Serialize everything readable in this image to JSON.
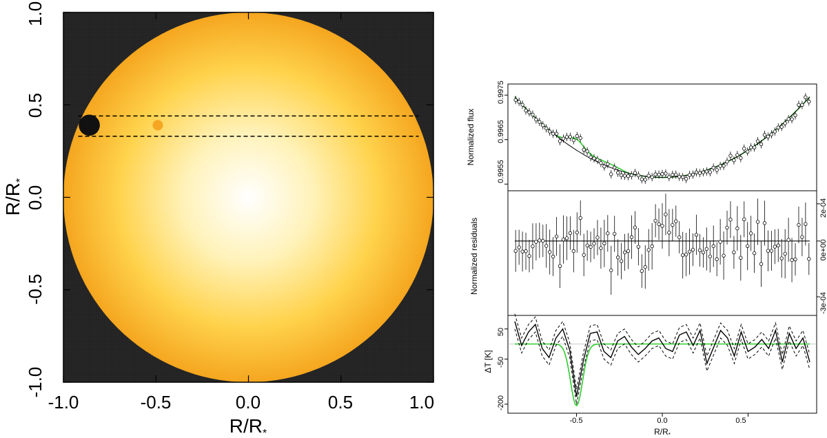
{
  "chart_data": [
    {
      "type": "heatmap",
      "name": "stellar-disk-map",
      "xlabel": "R/R",
      "ylabel": "R/R",
      "label_subscript": "*",
      "xlim": [
        -1.0,
        1.0
      ],
      "ylim": [
        -1.0,
        1.0
      ],
      "xticks": [
        "-1.0",
        "-0.5",
        "0.0",
        "0.5",
        "1.0"
      ],
      "yticks": [
        "-1.0",
        "-0.5",
        "0.0",
        "0.5",
        "1.0"
      ],
      "star_radius": 1.0,
      "transit_band": [
        0.33,
        0.44
      ],
      "planet": {
        "x": -0.86,
        "y": 0.39,
        "r": 0.057
      },
      "spot": {
        "x": -0.49,
        "y": 0.39,
        "r": 0.028
      },
      "colors": {
        "background": "#222222",
        "limb": "#f5a51c",
        "center": "#ffffff",
        "planet": "#111111",
        "spot": "#f5a623",
        "dashed": "#000000"
      }
    },
    {
      "type": "scatter",
      "name": "normalized-flux",
      "ylabel": "Normalized flux",
      "yticks": [
        "0.9955",
        "0.9965",
        "0.9975"
      ],
      "ylim": [
        0.99535,
        0.99775
      ],
      "xlim": [
        -0.9,
        0.9
      ],
      "model": {
        "a": 0.99565,
        "b": 0.00245
      },
      "bump": {
        "center": -0.5,
        "width": 0.05,
        "amp": 0.00025
      },
      "colors": {
        "model": "#000000",
        "fit": "#2ecc2e"
      }
    },
    {
      "type": "scatter",
      "name": "normalized-residuals",
      "ylabel": "Normalized residuals",
      "yticks_right": [
        "-3e-04",
        "0e+00",
        "2e-04"
      ],
      "ylim": [
        -0.0004,
        0.00027
      ]
    },
    {
      "type": "line",
      "name": "temperature-difference",
      "ylabel": "ΔT [K]",
      "xlabel": "R/R",
      "yticks": [
        "-200",
        "-50",
        "50"
      ],
      "ylim": [
        -230,
        95
      ],
      "xticks": [
        "-0.5",
        "0.0",
        "0.5"
      ],
      "xlim": [
        -0.9,
        0.9
      ],
      "x": [
        -0.86,
        -0.82,
        -0.78,
        -0.74,
        -0.7,
        -0.66,
        -0.62,
        -0.58,
        -0.54,
        -0.5,
        -0.46,
        -0.42,
        -0.38,
        -0.34,
        -0.3,
        -0.26,
        -0.22,
        -0.18,
        -0.14,
        -0.1,
        -0.06,
        -0.02,
        0.02,
        0.06,
        0.1,
        0.14,
        0.18,
        0.22,
        0.26,
        0.3,
        0.34,
        0.38,
        0.42,
        0.46,
        0.5,
        0.54,
        0.58,
        0.62,
        0.66,
        0.7,
        0.74,
        0.78,
        0.82,
        0.86
      ],
      "dT": [
        75,
        -5,
        40,
        65,
        -15,
        -45,
        20,
        50,
        -20,
        -175,
        -55,
        35,
        40,
        -25,
        -45,
        10,
        25,
        -10,
        -35,
        -15,
        10,
        20,
        -15,
        -25,
        30,
        40,
        -5,
        45,
        -65,
        -10,
        45,
        20,
        -40,
        40,
        -25,
        -10,
        15,
        -15,
        45,
        -60,
        35,
        -15,
        20,
        -60
      ],
      "green_baseline": 0,
      "green_dip": {
        "center": -0.5,
        "width": 0.035,
        "depth": -205
      },
      "band": 25,
      "colors": {
        "line": "#000000",
        "model": "#2ecc2e",
        "zero": "#bbbbbb"
      }
    }
  ]
}
